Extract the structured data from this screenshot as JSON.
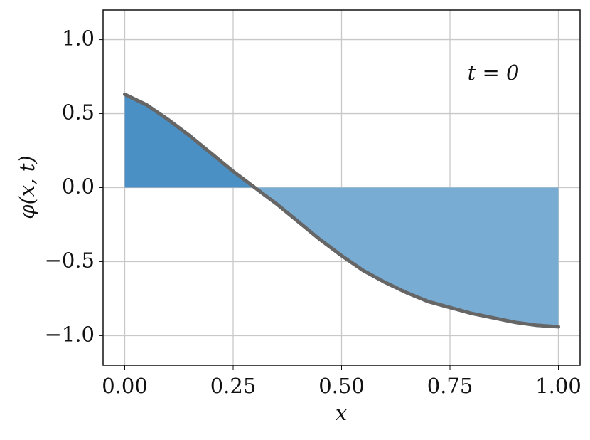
{
  "chart_data": {
    "type": "line",
    "x": [
      0,
      0.05,
      0.1,
      0.15,
      0.2,
      0.25,
      0.3,
      0.35,
      0.4,
      0.45,
      0.5,
      0.55,
      0.6,
      0.65,
      0.7,
      0.75,
      0.8,
      0.85,
      0.9,
      0.95,
      1.0
    ],
    "series": [
      {
        "name": "phi",
        "color": "#666666",
        "values": [
          0.63,
          0.56,
          0.46,
          0.35,
          0.23,
          0.11,
          0.0,
          -0.11,
          -0.23,
          -0.35,
          -0.46,
          -0.56,
          -0.64,
          -0.71,
          -0.77,
          -0.81,
          -0.85,
          -0.88,
          -0.91,
          -0.93,
          -0.94
        ]
      }
    ],
    "fill_positive_color": "#4a90c4",
    "fill_negative_color": "#79acd3",
    "xlabel": "x",
    "ylabel": "φ(x, t)",
    "annotation": "t = 0",
    "xlim": [
      -0.05,
      1.05
    ],
    "ylim": [
      -1.2,
      1.2
    ],
    "xticks": [
      {
        "value": 0,
        "label": "0.00"
      },
      {
        "value": 0.25,
        "label": "0.25"
      },
      {
        "value": 0.5,
        "label": "0.50"
      },
      {
        "value": 0.75,
        "label": "0.75"
      },
      {
        "value": 1,
        "label": "1.00"
      }
    ],
    "yticks": [
      {
        "value": -1,
        "label": "−1.0"
      },
      {
        "value": -0.5,
        "label": "−0.5"
      },
      {
        "value": 0,
        "label": "0.0"
      },
      {
        "value": 0.5,
        "label": "0.5"
      },
      {
        "value": 1,
        "label": "1.0"
      }
    ],
    "grid": true
  }
}
